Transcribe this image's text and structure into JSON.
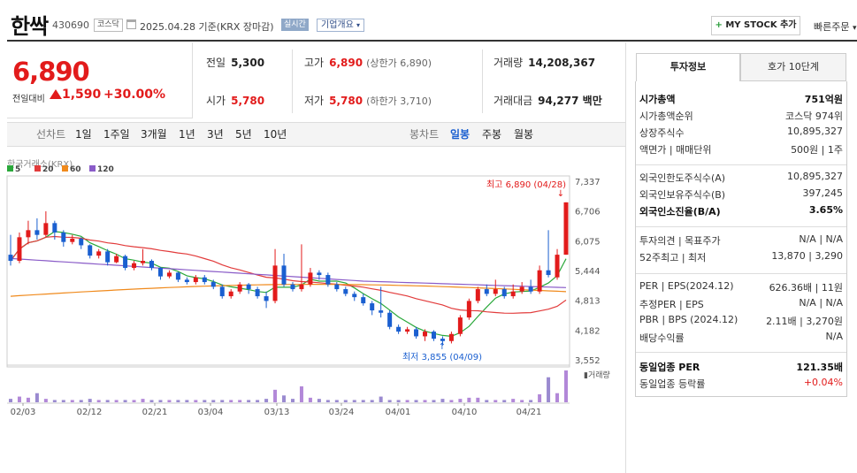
{
  "header": {
    "name": "한싹",
    "code": "430690",
    "market": "코스닥",
    "date": "2025.04.28 기준(KRX 장마감)",
    "realtime_label": "실시간",
    "overview_label": "기업개요",
    "mystock_label": "MY STOCK 추가",
    "quick_order": "빠른주문"
  },
  "summary": {
    "current_price": "6,890",
    "change_label": "전일대비",
    "change_value": "1,590",
    "change_pct": "+30.00%",
    "prev_close_label": "전일",
    "prev_close": "5,300",
    "high_label": "고가",
    "high": "6,890",
    "upper_limit": "(상한가 6,890)",
    "volume_label": "거래량",
    "volume": "14,208,367",
    "open_label": "시가",
    "open": "5,780",
    "low_label": "저가",
    "low": "5,780",
    "lower_limit": "(하한가 3,710)",
    "amount_label": "거래대금",
    "amount": "94,277 백만"
  },
  "tabs": {
    "line_chart": "선차트",
    "ranges": [
      "1일",
      "1주일",
      "3개월",
      "1년",
      "3년",
      "5년",
      "10년"
    ],
    "candle_chart": "봉차트",
    "periods": [
      "일봉",
      "주봉",
      "월봉"
    ],
    "active_period": "일봉"
  },
  "chart_data": {
    "type": "candlestick",
    "source": "한국거래소(KRX)",
    "legend": [
      {
        "name": "5",
        "color": "#2aa83a"
      },
      {
        "name": "20",
        "color": "#e23b3b"
      },
      {
        "name": "60",
        "color": "#f08a1c"
      },
      {
        "name": "120",
        "color": "#8a5cc8"
      }
    ],
    "y_ticks": [
      "7,337",
      "6,706",
      "6,075",
      "5,444",
      "4,813",
      "4,182",
      "3,552"
    ],
    "ylim": [
      3552,
      7337
    ],
    "x_ticks": [
      "02/03",
      "02/12",
      "02/21",
      "03/04",
      "03/13",
      "03/24",
      "04/01",
      "04/10",
      "04/21"
    ],
    "high_annotation": "최고 6,890 (04/28)",
    "low_annotation": "최저 3,855 (04/09)",
    "volume_label": "거래량",
    "candles": [
      [
        5780,
        5650,
        6200,
        5550
      ],
      [
        5650,
        6150,
        6250,
        5600
      ],
      [
        6150,
        6300,
        6500,
        6000
      ],
      [
        6300,
        6200,
        6550,
        6100
      ],
      [
        6200,
        6450,
        6700,
        6150
      ],
      [
        6450,
        6250,
        6500,
        6100
      ],
      [
        6250,
        6050,
        6300,
        5950
      ],
      [
        6050,
        6120,
        6200,
        6000
      ],
      [
        6120,
        5980,
        6150,
        5900
      ],
      [
        5980,
        5760,
        6000,
        5700
      ],
      [
        5760,
        5850,
        5900,
        5700
      ],
      [
        5850,
        5620,
        5900,
        5550
      ],
      [
        5620,
        5750,
        5800,
        5600
      ],
      [
        5750,
        5500,
        5780,
        5450
      ],
      [
        5500,
        5600,
        5650,
        5450
      ],
      [
        5600,
        5650,
        5900,
        5550
      ],
      [
        5650,
        5500,
        5680,
        5450
      ],
      [
        5500,
        5320,
        5520,
        5250
      ],
      [
        5320,
        5400,
        5450,
        5280
      ],
      [
        5400,
        5250,
        5420,
        5200
      ],
      [
        5250,
        5200,
        5300,
        5150
      ],
      [
        5200,
        5300,
        5350,
        5150
      ],
      [
        5300,
        5200,
        5350,
        5150
      ],
      [
        5200,
        5100,
        5250,
        5050
      ],
      [
        5100,
        4900,
        5150,
        4850
      ],
      [
        4900,
        5000,
        5050,
        4850
      ],
      [
        5000,
        5150,
        5200,
        4950
      ],
      [
        5150,
        5050,
        5180,
        4950
      ],
      [
        5050,
        4900,
        5100,
        4850
      ],
      [
        4900,
        4800,
        5000,
        4650
      ],
      [
        4800,
        5550,
        5900,
        4750
      ],
      [
        5550,
        5150,
        5800,
        5100
      ],
      [
        5150,
        5050,
        5200,
        5000
      ],
      [
        5050,
        5150,
        6000,
        5000
      ],
      [
        5150,
        5400,
        5500,
        5100
      ],
      [
        5400,
        5350,
        5450,
        5250
      ],
      [
        5350,
        5150,
        5400,
        5100
      ],
      [
        5150,
        5050,
        5200,
        5000
      ],
      [
        5050,
        4950,
        5100,
        4900
      ],
      [
        4950,
        4880,
        5000,
        4800
      ],
      [
        4880,
        4750,
        4950,
        4700
      ],
      [
        4750,
        4600,
        4800,
        4500
      ],
      [
        4600,
        4550,
        5100,
        4450
      ],
      [
        4550,
        4250,
        4600,
        4200
      ],
      [
        4250,
        4150,
        4300,
        4100
      ],
      [
        4150,
        4200,
        4250,
        4100
      ],
      [
        4200,
        4050,
        4250,
        4000
      ],
      [
        4050,
        4150,
        4200,
        3950
      ],
      [
        4150,
        4000,
        4180,
        3950
      ],
      [
        4000,
        3950,
        4050,
        3855
      ],
      [
        3950,
        4100,
        4150,
        3900
      ],
      [
        4100,
        4450,
        4500,
        4050
      ],
      [
        4450,
        4800,
        4850,
        4400
      ],
      [
        4800,
        5050,
        5100,
        4750
      ],
      [
        5050,
        4950,
        5150,
        4900
      ],
      [
        4950,
        5050,
        5250,
        4900
      ],
      [
        5050,
        4900,
        5100,
        4850
      ],
      [
        4900,
        5000,
        5150,
        4850
      ],
      [
        5000,
        5100,
        5200,
        4950
      ],
      [
        5100,
        5000,
        5250,
        4950
      ],
      [
        5000,
        5450,
        5550,
        4950
      ],
      [
        5450,
        5350,
        6300,
        5300
      ],
      [
        5300,
        5780,
        5900,
        5250
      ],
      [
        5780,
        6890,
        6890,
        5780
      ]
    ],
    "volumes": [
      3,
      5,
      4,
      8,
      3,
      2,
      2,
      2,
      2,
      3,
      2,
      2,
      2,
      2,
      2,
      3,
      2,
      2,
      2,
      2,
      2,
      2,
      2,
      2,
      2,
      2,
      2,
      2,
      2,
      3,
      11,
      6,
      3,
      14,
      4,
      3,
      2,
      2,
      2,
      2,
      2,
      2,
      5,
      2,
      2,
      2,
      2,
      2,
      2,
      3,
      2,
      3,
      4,
      4,
      2,
      2,
      2,
      3,
      2,
      2,
      7,
      22,
      8,
      28
    ]
  },
  "right_panel": {
    "tab_invest": "투자정보",
    "tab_quote": "호가 10단계",
    "rows": [
      {
        "l": "시가총액",
        "r": "751억원",
        "bold": true
      },
      {
        "l": "시가총액순위",
        "r": "코스닥 974위"
      },
      {
        "l": "상장주식수",
        "r": "10,895,327"
      },
      {
        "l": "액면가 | 매매단위",
        "r": "500원 | 1주"
      },
      {
        "l": "외국인한도주식수(A)",
        "r": "10,895,327"
      },
      {
        "l": "외국인보유주식수(B)",
        "r": "397,245"
      },
      {
        "l": "외국인소진율(B/A)",
        "r": "3.65%",
        "bold": true
      },
      {
        "l": "투자의견 | 목표주가",
        "r": "N/A | N/A"
      },
      {
        "l": "52주최고 | 최저",
        "r": "13,870 | 3,290"
      },
      {
        "l": "PER | EPS(2024.12)",
        "r": "626.36배 | 11원"
      },
      {
        "l": "추정PER | EPS",
        "r": "N/A | N/A"
      },
      {
        "l": "PBR | BPS (2024.12)",
        "r": "2.11배 | 3,270원"
      },
      {
        "l": "배당수익률",
        "r": "N/A"
      },
      {
        "l": "동일업종 PER",
        "r": "121.35배",
        "bold": true
      },
      {
        "l": "동일업종 등락률",
        "r": "+0.04%",
        "red": true
      }
    ]
  }
}
